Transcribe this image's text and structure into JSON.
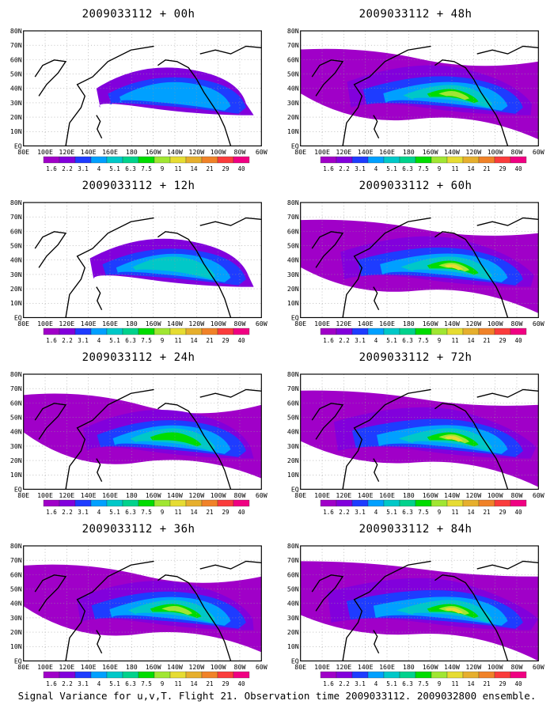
{
  "panels": [
    {
      "title": "2009033112 + 00h",
      "lead_hours": 0
    },
    {
      "title": "2009033112 + 48h",
      "lead_hours": 48
    },
    {
      "title": "2009033112 + 12h",
      "lead_hours": 12
    },
    {
      "title": "2009033112 + 60h",
      "lead_hours": 60
    },
    {
      "title": "2009033112 + 24h",
      "lead_hours": 24
    },
    {
      "title": "2009033112 + 72h",
      "lead_hours": 72
    },
    {
      "title": "2009033112 + 36h",
      "lead_hours": 36
    },
    {
      "title": "2009033112 + 84h",
      "lead_hours": 84
    }
  ],
  "map": {
    "lon_labels": [
      "80E",
      "100E",
      "120E",
      "140E",
      "160E",
      "180",
      "160W",
      "140W",
      "120W",
      "100W",
      "80W",
      "60W"
    ],
    "lat_labels": [
      "80N",
      "70N",
      "60N",
      "50N",
      "40N",
      "30N",
      "20N",
      "10N",
      "EQ"
    ]
  },
  "colorbar": {
    "labels": [
      "1.6",
      "2.2",
      "3.1",
      "4",
      "5.1",
      "6.3",
      "7.5",
      "9",
      "11",
      "14",
      "21",
      "29",
      "40"
    ],
    "colors": [
      "#a000c8",
      "#8200dc",
      "#1e3cff",
      "#00a0ff",
      "#00c8c8",
      "#00d28c",
      "#00dc00",
      "#a0e632",
      "#e6dc32",
      "#e6af2d",
      "#f08228",
      "#fa3c3c",
      "#f00082"
    ]
  },
  "footer": "Signal Variance for u,v,T. Flight 21. Observation time 2009033112. 2009032800 ensemble."
}
